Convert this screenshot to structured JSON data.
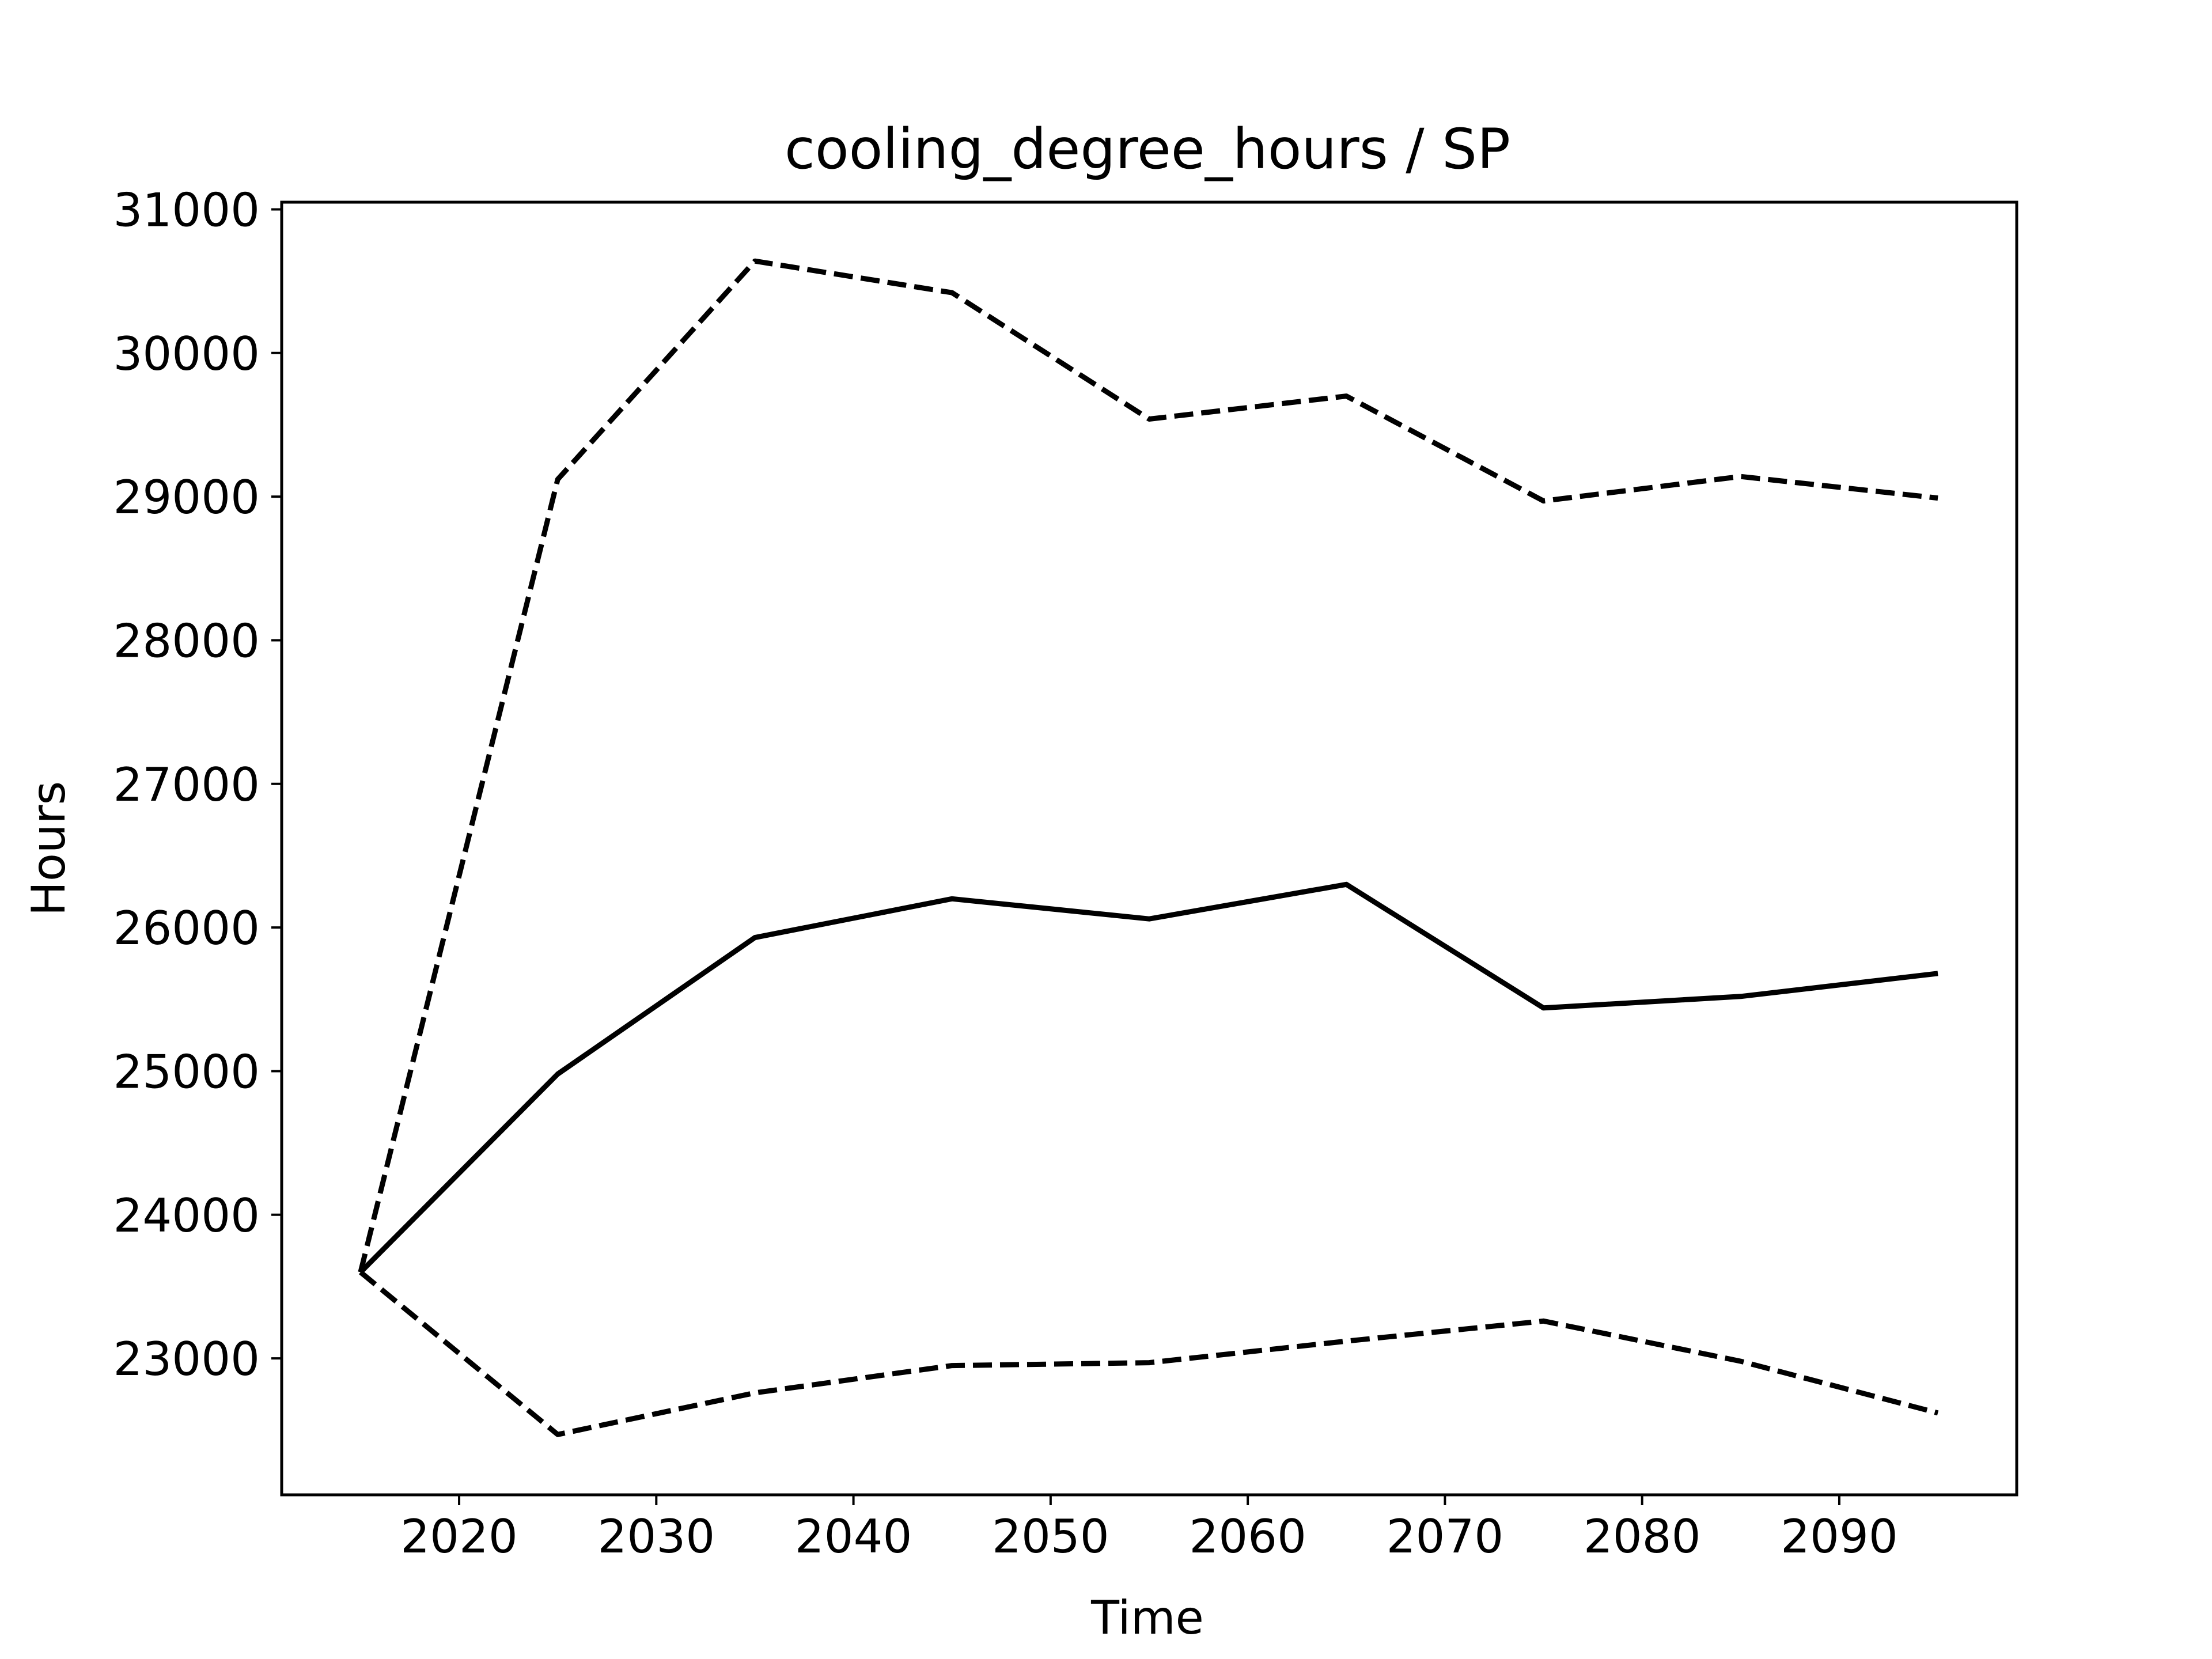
{
  "chart_data": {
    "type": "line",
    "title": "cooling_degree_hours / SP",
    "xlabel": "Time",
    "ylabel": "Hours",
    "xlim": [
      2011,
      2099
    ],
    "ylim": [
      22050,
      31050
    ],
    "xticks": [
      2020,
      2030,
      2040,
      2050,
      2060,
      2070,
      2080,
      2090
    ],
    "yticks": [
      23000,
      24000,
      25000,
      26000,
      27000,
      28000,
      29000,
      30000,
      31000
    ],
    "grid": false,
    "x": [
      2015,
      2025,
      2035,
      2045,
      2055,
      2065,
      2075,
      2085,
      2095
    ],
    "series": [
      {
        "style": "solid",
        "color": "#000000",
        "values": [
          23600,
          24980,
          25930,
          26200,
          26060,
          26300,
          25440,
          25520,
          25680
        ]
      },
      {
        "style": "dashed",
        "color": "#000000",
        "values": [
          23600,
          29120,
          30640,
          30420,
          29540,
          29700,
          28970,
          29140,
          28990
        ]
      },
      {
        "style": "dashed",
        "color": "#000000",
        "values": [
          23600,
          22470,
          22760,
          22950,
          22970,
          23120,
          23260,
          22980,
          22620
        ]
      }
    ]
  }
}
